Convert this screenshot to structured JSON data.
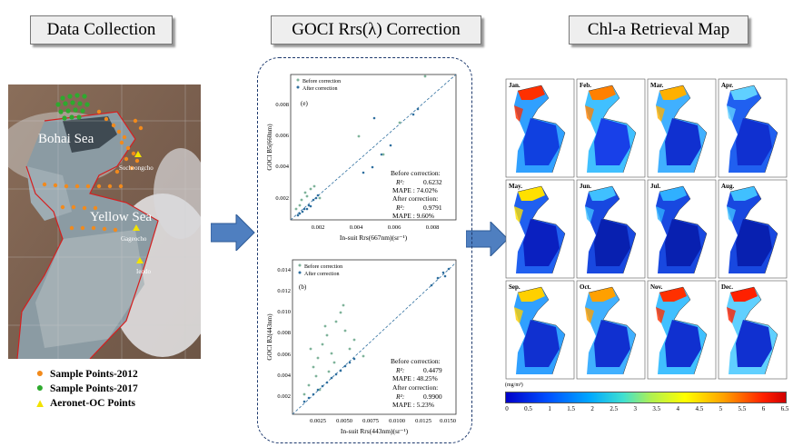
{
  "headers": {
    "data_collection": "Data Collection",
    "correction": "GOCI Rrs(λ) Correction",
    "retrieval": "Chl-a Retrieval Map"
  },
  "map": {
    "labels": {
      "bohai": "Bohai Sea",
      "yellow": "Yellow Sea",
      "socheongcho": "Socheongcho",
      "gageocho": "Gageocho",
      "ieodo": "Ieodo"
    }
  },
  "legend": [
    {
      "label": "Sample Points-2012",
      "color": "#f28a1c",
      "shape": "circle"
    },
    {
      "label": "Sample Points-2017",
      "color": "#2eaa2e",
      "shape": "circle"
    },
    {
      "label": "Aeronet-OC Points",
      "color": "#f2e200",
      "shape": "triangle"
    }
  ],
  "plot_e": {
    "panel": "(e)",
    "legend": [
      "Before correction",
      "After correction"
    ],
    "ylabel": "GOCI B5(660nm)",
    "xlabel": "In-suit Rrs(667nm)(sr⁻¹)",
    "xticks": [
      "0.002",
      "0.004",
      "0.006",
      "0.008"
    ],
    "yticks": [
      "0.002",
      "0.004",
      "0.006",
      "0.008"
    ],
    "stats": {
      "before_title": "Before correction:",
      "before_r2": "0.6232",
      "before_mape": "MAPE : 74.02%",
      "after_title": "After correction:",
      "after_r2": "0.9791",
      "after_mape": "MAPE :  9.60%",
      "r2": "R²:"
    }
  },
  "plot_b": {
    "panel": "(b)",
    "legend": [
      "Before correction",
      "After correction"
    ],
    "ylabel": "GOCI B2(443nm)",
    "xlabel": "In-suit Rrs(443nm)(sr⁻¹)",
    "xticks": [
      "0.0025",
      "0.0050",
      "0.0075",
      "0.0100",
      "0.0125",
      "0.0150"
    ],
    "yticks": [
      "0.002",
      "0.004",
      "0.006",
      "0.008",
      "0.010",
      "0.012",
      "0.014"
    ],
    "stats": {
      "before_title": "Before correction:",
      "before_r2": "0.4479",
      "before_mape": "MAPE : 48.25%",
      "after_title": "After correction:",
      "after_r2": "0.9900",
      "after_mape": "MAPE :  5.23%",
      "r2": "R²:"
    }
  },
  "months": [
    "Jan.",
    "Feb.",
    "Mar.",
    "Apr.",
    "May.",
    "Jun.",
    "Jul.",
    "Aug.",
    "Sep.",
    "Oct.",
    "Nov.",
    "Dec."
  ],
  "colorbar": {
    "unit": "(mg/m³)",
    "ticks": [
      "0",
      "0.5",
      "1",
      "1.5",
      "2",
      "2.5",
      "3",
      "3.5",
      "4",
      "4.5",
      "5",
      "5.5",
      "6",
      "6.5"
    ]
  },
  "colors": {
    "before": "#7fb39a",
    "after": "#2f6f9f",
    "arrow": "#4f7fc0",
    "dash_border": "#1e3a6e"
  }
}
